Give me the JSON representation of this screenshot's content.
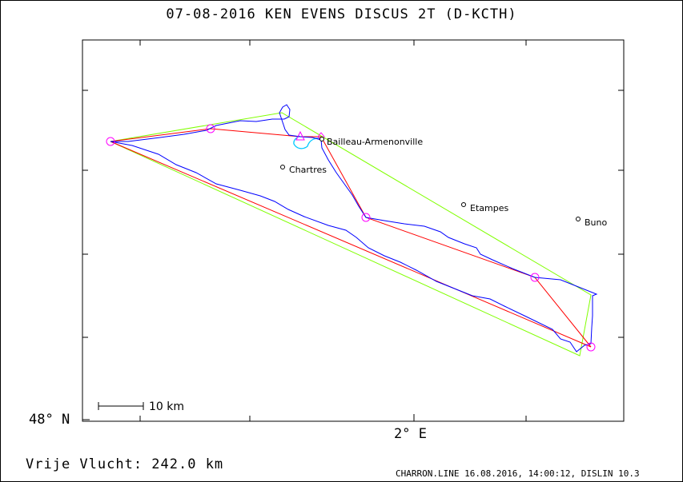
{
  "header": {
    "title": "07-08-2016    KEN EVENS    DISCUS 2T (D-KCTH)"
  },
  "axes": {
    "lat_label": "48° N",
    "lon_label": "2° E"
  },
  "scale_bar": {
    "label": "10 km"
  },
  "towns": [
    {
      "name": "Bailleau-Armenonville"
    },
    {
      "name": "Chartres"
    },
    {
      "name": "Etampes"
    },
    {
      "name": "Buno"
    }
  ],
  "summary": {
    "distance_text": "Vrije Vlucht:  242.0 km"
  },
  "footer": {
    "credits": "CHARRON.LINE 16.08.2016, 14:00:12, DISLIN 10.3"
  },
  "colors": {
    "task_line": "#ff0000",
    "optimized_line": "#80ff00",
    "flight_track": "#0000ff",
    "tow_track": "#00c8ff",
    "turnpoint": "#ff00ff",
    "frame": "#000000"
  }
}
